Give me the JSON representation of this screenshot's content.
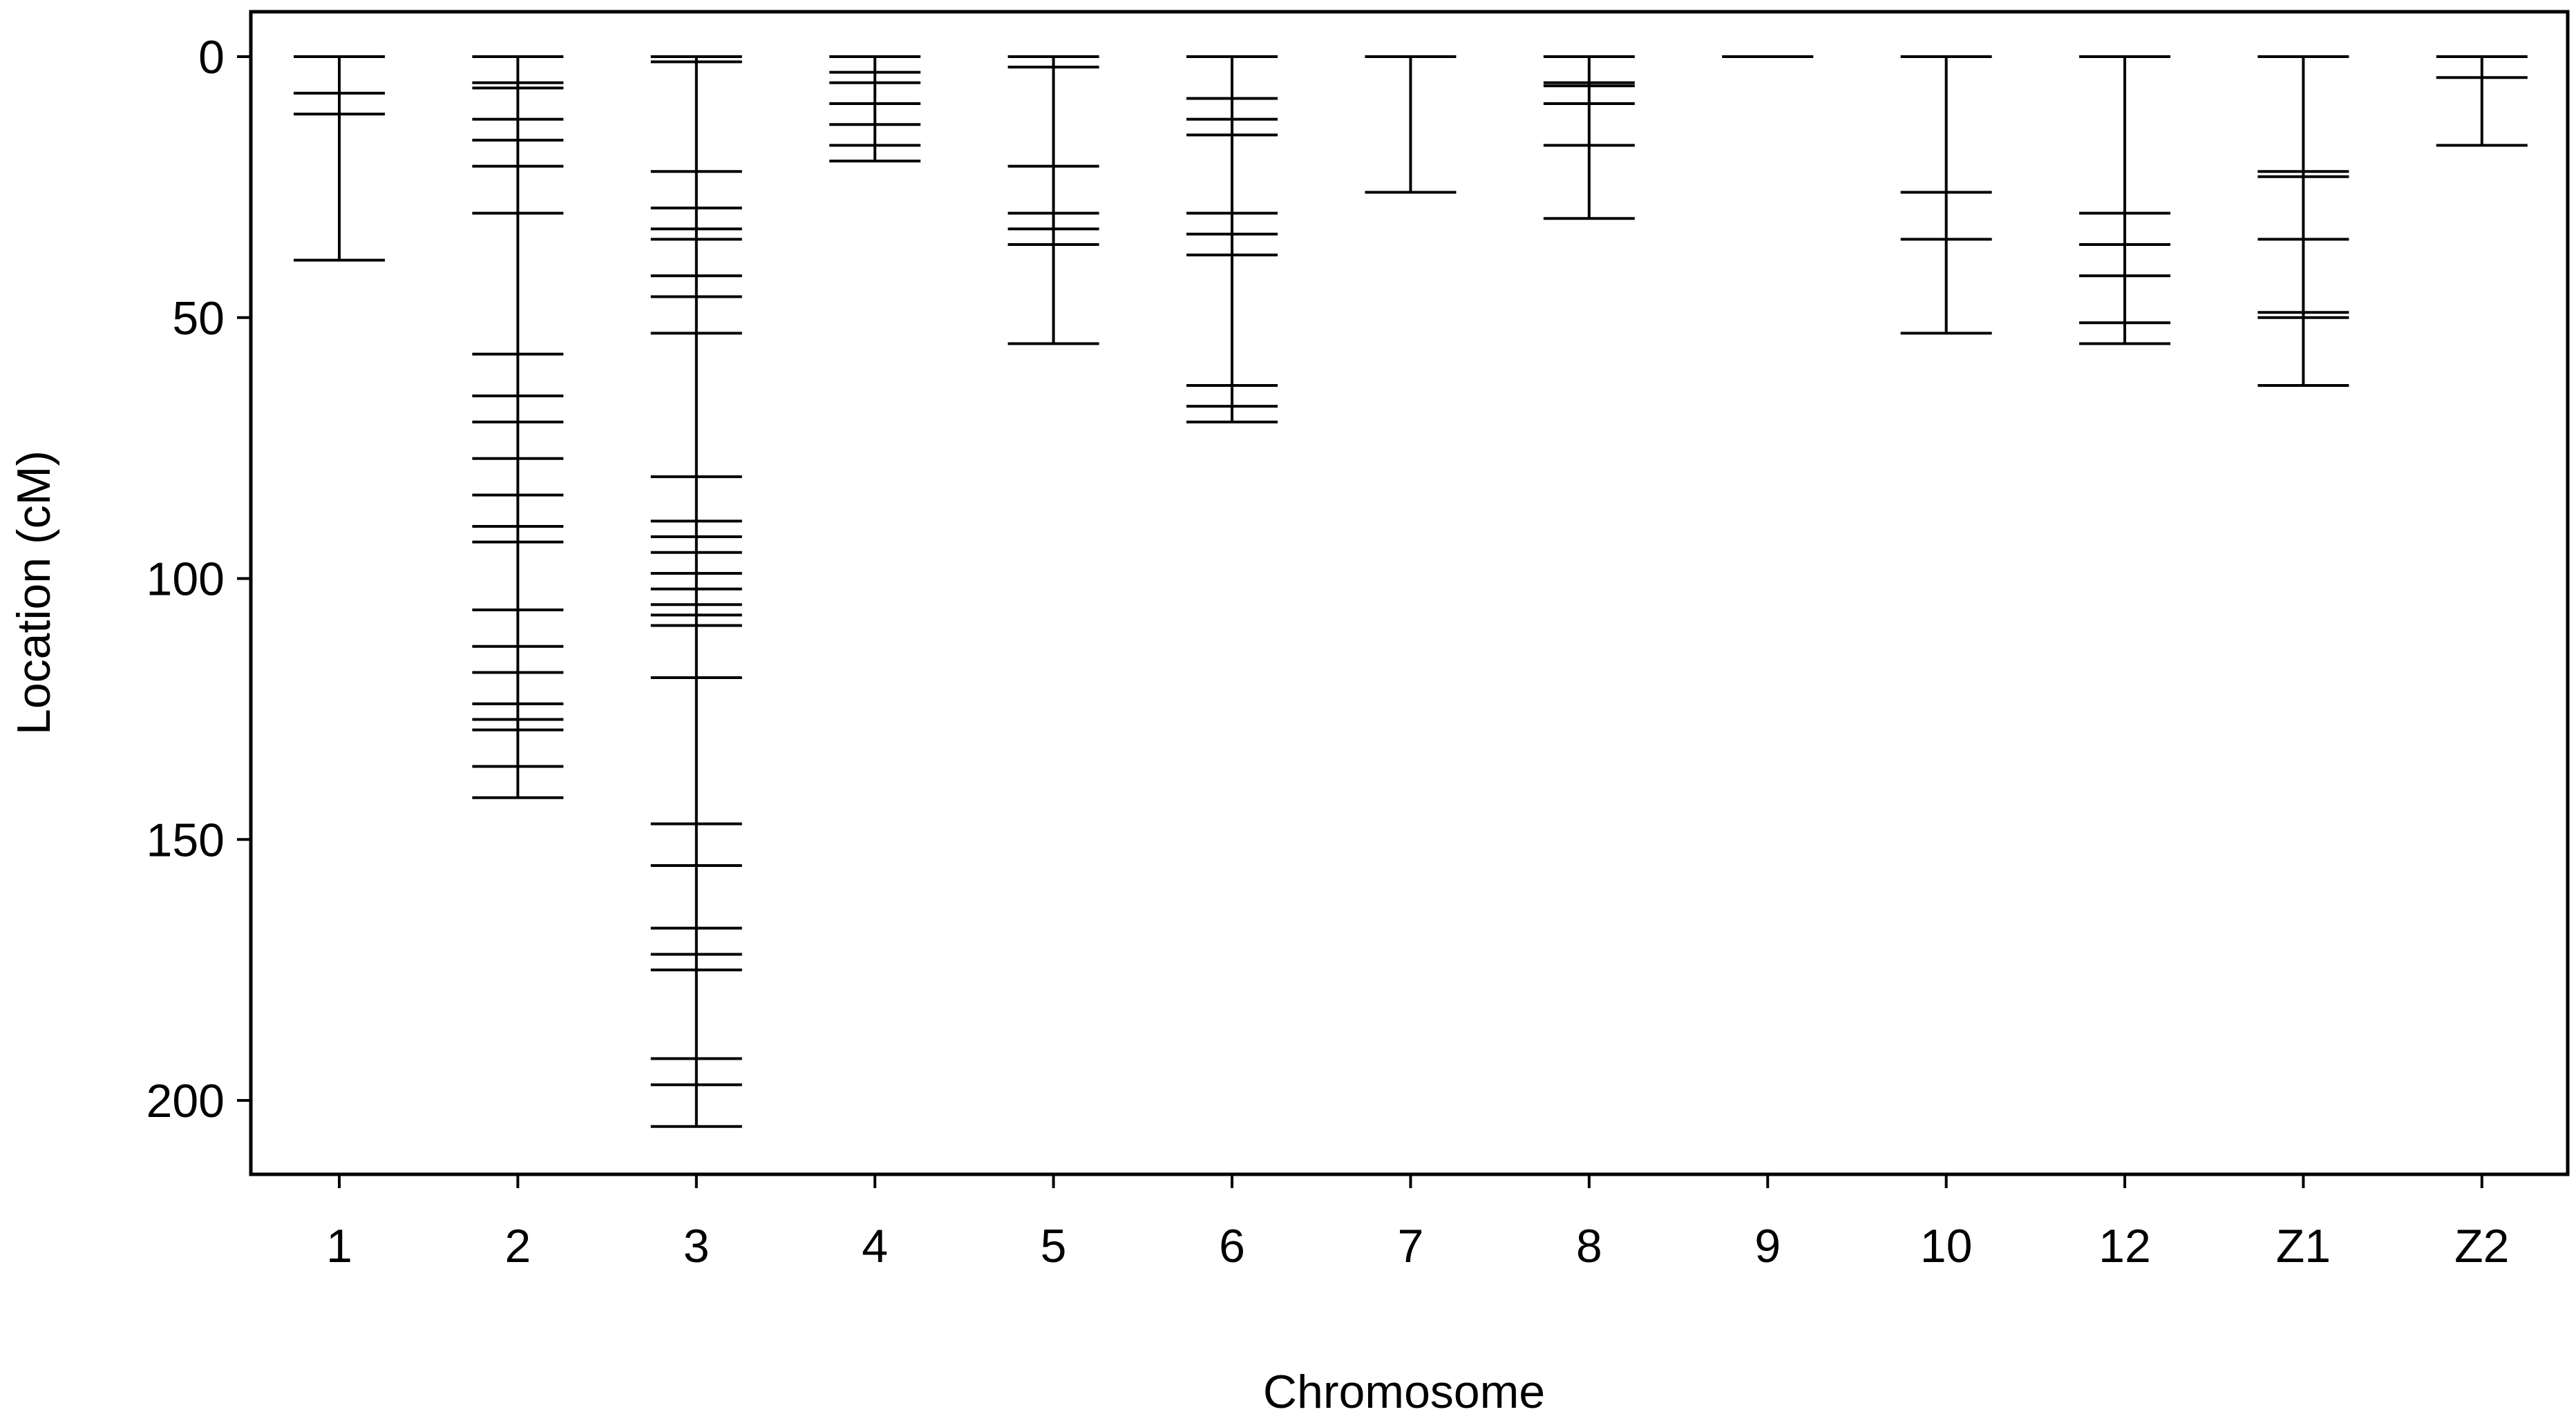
{
  "chart_data": {
    "type": "genetic-map",
    "title": "",
    "xlabel": "Chromosome",
    "ylabel": "Location (cM)",
    "ylim": [
      0,
      214
    ],
    "y_reversed": true,
    "y_ticks": [
      0,
      50,
      100,
      150,
      200
    ],
    "grid": false,
    "legend": "none",
    "chromosomes": [
      {
        "name": "1",
        "length": 39,
        "markers": [
          0,
          7,
          11,
          39
        ]
      },
      {
        "name": "2",
        "length": 142,
        "markers": [
          0,
          5,
          6,
          12,
          16,
          21,
          30,
          57,
          65,
          70,
          77,
          84,
          90,
          93,
          106,
          113,
          118,
          124,
          127,
          129,
          136,
          142
        ]
      },
      {
        "name": "3",
        "length": 205,
        "markers": [
          0,
          1,
          22,
          29,
          33,
          35,
          42,
          46,
          53,
          80.5,
          89,
          92,
          95,
          99,
          102,
          105,
          107,
          109,
          119,
          147,
          155,
          167,
          172,
          175,
          192,
          197,
          205
        ]
      },
      {
        "name": "4",
        "length": 20,
        "markers": [
          0,
          3,
          5,
          9,
          13,
          17,
          20
        ]
      },
      {
        "name": "5",
        "length": 55,
        "markers": [
          0,
          2,
          21,
          30,
          33,
          36,
          55
        ]
      },
      {
        "name": "6",
        "length": 70,
        "markers": [
          0,
          8,
          12,
          15,
          30,
          34,
          38,
          63,
          67,
          70
        ]
      },
      {
        "name": "7",
        "length": 26,
        "markers": [
          0,
          26
        ]
      },
      {
        "name": "8",
        "length": 31,
        "markers": [
          0,
          5,
          5.6,
          9,
          17,
          31
        ]
      },
      {
        "name": "9",
        "length": 0,
        "markers": [
          0
        ]
      },
      {
        "name": "10",
        "length": 53,
        "markers": [
          0,
          26,
          35,
          53
        ]
      },
      {
        "name": "12",
        "length": 55,
        "markers": [
          0,
          30,
          36,
          42,
          51,
          55
        ]
      },
      {
        "name": "Z1",
        "length": 63,
        "markers": [
          0,
          22,
          23,
          35,
          49,
          50,
          63
        ]
      },
      {
        "name": "Z2",
        "length": 17,
        "markers": [
          0,
          4,
          17
        ]
      }
    ]
  }
}
